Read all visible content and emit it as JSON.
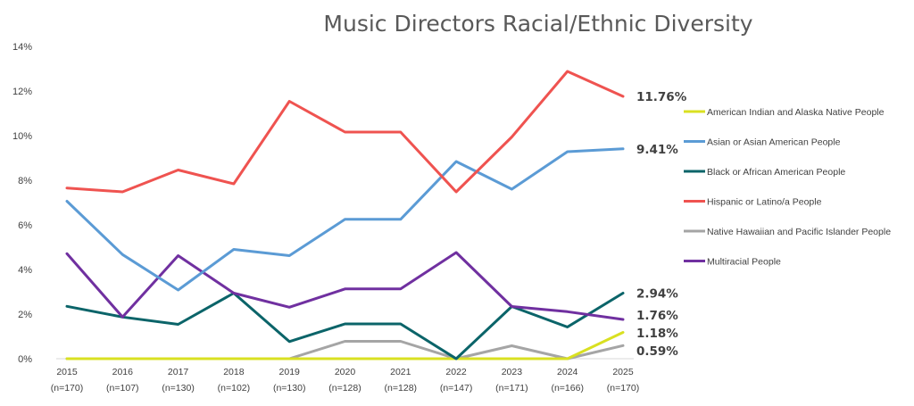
{
  "chart_data": {
    "type": "line",
    "title": "Music Directors Racial/Ethnic Diversity",
    "xlabel": "",
    "ylabel": "",
    "ylim": [
      0,
      14
    ],
    "y_ticks": [
      "0%",
      "2%",
      "4%",
      "6%",
      "8%",
      "10%",
      "12%",
      "14%"
    ],
    "categories": [
      {
        "year": "2015",
        "n": "(n=170)"
      },
      {
        "year": "2016",
        "n": "(n=107)"
      },
      {
        "year": "2017",
        "n": "(n=130)"
      },
      {
        "year": "2018",
        "n": "(n=102)"
      },
      {
        "year": "2019",
        "n": "(n=130)"
      },
      {
        "year": "2020",
        "n": "(n=128)"
      },
      {
        "year": "2021",
        "n": "(n=128)"
      },
      {
        "year": "2022",
        "n": "(n=147)"
      },
      {
        "year": "2023",
        "n": "(n=171)"
      },
      {
        "year": "2024",
        "n": "(n=166)"
      },
      {
        "year": "2025",
        "n": "(n=170)"
      }
    ],
    "legend_position": "right",
    "grid": false,
    "series": [
      {
        "name": "American Indian and Alaska Native People",
        "color": "#d9e021",
        "values": [
          0,
          0,
          0,
          0,
          0,
          0,
          0,
          0,
          0,
          0,
          1.18
        ],
        "end_label": "1.18%"
      },
      {
        "name": "Asian or Asian American People",
        "color": "#5b9bd5",
        "values": [
          7.06,
          4.67,
          3.08,
          4.9,
          4.62,
          6.25,
          6.25,
          8.84,
          7.6,
          9.28,
          9.41
        ],
        "end_label": "9.41%"
      },
      {
        "name": "Black or African American People",
        "color": "#0b6469",
        "values": [
          2.35,
          1.87,
          1.54,
          2.94,
          0.77,
          1.56,
          1.56,
          0,
          2.34,
          1.42,
          2.94
        ],
        "end_label": "2.94%"
      },
      {
        "name": "Hispanic or Latino/a People",
        "color": "#ef5350",
        "values": [
          7.65,
          7.48,
          8.46,
          7.84,
          11.54,
          10.16,
          10.16,
          7.48,
          9.94,
          12.88,
          11.76
        ],
        "end_label": "11.76%"
      },
      {
        "name": "Native Hawaiian and Pacific Islander People",
        "color": "#a5a5a5",
        "values": [
          0,
          0,
          0,
          0,
          0,
          0.78,
          0.78,
          0,
          0.58,
          0,
          0.59
        ],
        "end_label": "0.59%"
      },
      {
        "name": "Multiracial People",
        "color": "#7030a0",
        "values": [
          4.71,
          1.87,
          4.62,
          2.94,
          2.31,
          3.13,
          3.13,
          4.76,
          2.34,
          2.11,
          1.76
        ],
        "end_label": "1.76%"
      }
    ]
  }
}
